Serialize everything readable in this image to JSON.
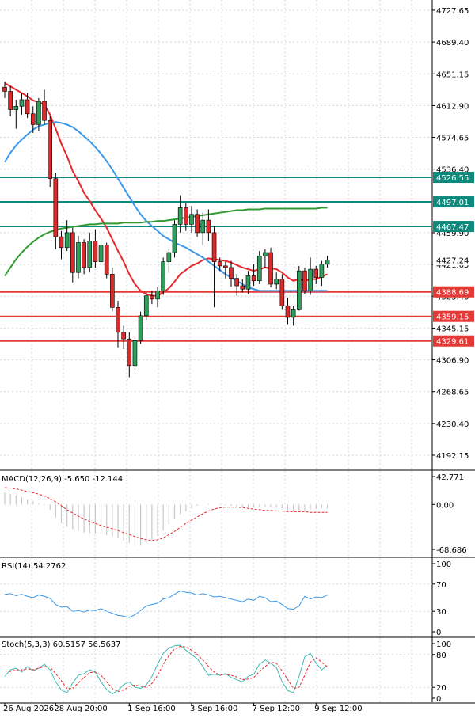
{
  "colors": {
    "bull": "#2e9e5b",
    "bear": "#d92b2b",
    "ema_fast": "#e8262c",
    "sma_mid": "#3a97e8",
    "sma_slow": "#2f9a2f",
    "resistance": "#0e8a7d",
    "support": "#e53935",
    "grid": "#cfd8dc",
    "macd_hist": "#c8c8c8",
    "macd_signal": "#e8262c",
    "rsi": "#3a97e8",
    "stoch_main": "#3fb8b0",
    "stoch_signal": "#e8262c"
  },
  "price_axis": {
    "ticks": [
      "4727.65",
      "4689.40",
      "4651.15",
      "4612.90",
      "4574.65",
      "4536.40",
      "4459.90",
      "4421.65",
      "4383.40",
      "4345.15",
      "4306.90",
      "4268.65",
      "4230.40",
      "4192.15"
    ]
  },
  "levels": [
    {
      "label": "4526.55",
      "value": 4526.55,
      "kind": "resistance"
    },
    {
      "label": "4497.01",
      "value": 4497.01,
      "kind": "resistance"
    },
    {
      "label": "4467.47",
      "value": 4467.47,
      "kind": "resistance"
    },
    {
      "label": "4388.69",
      "value": 4388.69,
      "kind": "support"
    },
    {
      "label": "4359.15",
      "value": 4359.15,
      "kind": "support"
    },
    {
      "label": "4329.61",
      "value": 4329.61,
      "kind": "support"
    }
  ],
  "current_price": {
    "label": "4427.24",
    "value": 4427.24
  },
  "x_axis": {
    "labels": [
      "26 Aug 2026",
      "28 Aug 20:00",
      "1 Sep 16:00",
      "3 Sep 16:00",
      "7 Sep 12:00",
      "9 Sep 12:00"
    ]
  },
  "macd": {
    "title": "MACD(12,26,9) -5.650 -12.144",
    "ticks": [
      "42.771",
      "0.00",
      "-68.686"
    ]
  },
  "rsi": {
    "title": "RSI(14) 54.2762",
    "ticks": [
      "100",
      "70",
      "30",
      "0"
    ]
  },
  "stoch": {
    "title": "Stoch(5,3,3) 60.5157 56.5637",
    "ticks": [
      "100",
      "80",
      "20",
      "0"
    ]
  },
  "chart_data": [
    {
      "type": "candlestick",
      "title": "",
      "ylim": [
        4175,
        4740
      ],
      "ohlc": [
        [
          4635,
          4642,
          4622,
          4630
        ],
        [
          4630,
          4636,
          4600,
          4608
        ],
        [
          4608,
          4620,
          4585,
          4612
        ],
        [
          4612,
          4628,
          4602,
          4620
        ],
        [
          4620,
          4628,
          4598,
          4603
        ],
        [
          4603,
          4612,
          4580,
          4590
        ],
        [
          4590,
          4622,
          4582,
          4618
        ],
        [
          4618,
          4632,
          4590,
          4595
        ],
        [
          4595,
          4600,
          4515,
          4525
        ],
        [
          4525,
          4532,
          4440,
          4455
        ],
        [
          4455,
          4462,
          4428,
          4442
        ],
        [
          4442,
          4475,
          4438,
          4460
        ],
        [
          4460,
          4466,
          4400,
          4412
        ],
        [
          4412,
          4456,
          4405,
          4448
        ],
        [
          4448,
          4452,
          4410,
          4418
        ],
        [
          4418,
          4460,
          4412,
          4450
        ],
        [
          4450,
          4464,
          4418,
          4425
        ],
        [
          4425,
          4455,
          4420,
          4445
        ],
        [
          4445,
          4448,
          4405,
          4410
        ],
        [
          4410,
          4418,
          4365,
          4370
        ],
        [
          4370,
          4378,
          4322,
          4340
        ],
        [
          4340,
          4348,
          4320,
          4332
        ],
        [
          4332,
          4340,
          4286,
          4300
        ],
        [
          4300,
          4335,
          4295,
          4330
        ],
        [
          4330,
          4365,
          4326,
          4360
        ],
        [
          4360,
          4388,
          4355,
          4384
        ],
        [
          4384,
          4390,
          4374,
          4380
        ],
        [
          4380,
          4395,
          4370,
          4390
        ],
        [
          4390,
          4430,
          4385,
          4425
        ],
        [
          4425,
          4440,
          4412,
          4436
        ],
        [
          4436,
          4475,
          4430,
          4470
        ],
        [
          4470,
          4505,
          4460,
          4490
        ],
        [
          4490,
          4496,
          4462,
          4470
        ],
        [
          4470,
          4492,
          4460,
          4482
        ],
        [
          4482,
          4488,
          4455,
          4460
        ],
        [
          4460,
          4484,
          4445,
          4475
        ],
        [
          4475,
          4488,
          4450,
          4460
        ],
        [
          4460,
          4468,
          4370,
          4425
        ],
        [
          4425,
          4430,
          4414,
          4420
        ],
        [
          4420,
          4425,
          4405,
          4418
        ],
        [
          4418,
          4426,
          4395,
          4405
        ],
        [
          4405,
          4410,
          4384,
          4396
        ],
        [
          4396,
          4404,
          4388,
          4392
        ],
        [
          4392,
          4414,
          4386,
          4408
        ],
        [
          4408,
          4422,
          4396,
          4402
        ],
        [
          4402,
          4438,
          4398,
          4432
        ],
        [
          4432,
          4440,
          4418,
          4436
        ],
        [
          4436,
          4442,
          4394,
          4398
        ],
        [
          4398,
          4412,
          4392,
          4404
        ],
        [
          4404,
          4410,
          4368,
          4372
        ],
        [
          4372,
          4382,
          4350,
          4358
        ],
        [
          4358,
          4372,
          4348,
          4368
        ],
        [
          4368,
          4420,
          4366,
          4414
        ],
        [
          4414,
          4418,
          4386,
          4390
        ],
        [
          4390,
          4430,
          4385,
          4416
        ],
        [
          4416,
          4420,
          4398,
          4406
        ],
        [
          4406,
          4426,
          4396,
          4422
        ],
        [
          4422,
          4432,
          4418,
          4427
        ]
      ],
      "series": [
        {
          "name": "ema_fast",
          "values": [
            4640,
            4636,
            4632,
            4628,
            4624,
            4619,
            4617,
            4614,
            4602,
            4585,
            4567,
            4552,
            4534,
            4522,
            4508,
            4498,
            4487,
            4477,
            4466,
            4452,
            4438,
            4425,
            4410,
            4398,
            4390,
            4386,
            4384,
            4384,
            4388,
            4393,
            4401,
            4410,
            4415,
            4420,
            4423,
            4427,
            4429,
            4428,
            4427,
            4426,
            4424,
            4421,
            4418,
            4416,
            4414,
            4416,
            4418,
            4417,
            4416,
            4412,
            4406,
            4402,
            4404,
            4402,
            4404,
            4404,
            4407,
            4410
          ]
        },
        {
          "name": "sma_mid",
          "values": [
            4545,
            4556,
            4565,
            4572,
            4578,
            4584,
            4588,
            4590,
            4592,
            4593,
            4592,
            4590,
            4587,
            4582,
            4576,
            4570,
            4563,
            4555,
            4546,
            4536,
            4525,
            4514,
            4503,
            4492,
            4482,
            4474,
            4468,
            4462,
            4456,
            4452,
            4448,
            4445,
            4442,
            4438,
            4434,
            4430,
            4425,
            4420,
            4415,
            4410,
            4406,
            4402,
            4398,
            4394,
            4392,
            4390,
            4390,
            4390,
            4390,
            4390,
            4390,
            4390,
            4390,
            4390,
            4390,
            4390,
            4390,
            4390
          ]
        },
        {
          "name": "sma_slow",
          "values": [
            4408,
            4418,
            4428,
            4436,
            4443,
            4449,
            4454,
            4458,
            4461,
            4463,
            4465,
            4466,
            4467,
            4468,
            4469,
            4470,
            4470,
            4471,
            4471,
            4471,
            4471,
            4472,
            4472,
            4472,
            4472,
            4473,
            4473,
            4474,
            4474,
            4475,
            4476,
            4477,
            4478,
            4479,
            4480,
            4481,
            4482,
            4483,
            4484,
            4485,
            4486,
            4487,
            4487,
            4488,
            4488,
            4488,
            4489,
            4489,
            4489,
            4489,
            4489,
            4489,
            4489,
            4489,
            4489,
            4489,
            4490,
            4490
          ]
        }
      ]
    },
    {
      "type": "bar",
      "title": "MACD(12,26,9) -5.650 -12.144",
      "ylim": [
        -68.686,
        42.771
      ],
      "values": [
        18,
        16,
        14,
        11,
        8,
        5,
        2,
        -1,
        -8,
        -20,
        -29,
        -34,
        -38,
        -41,
        -43,
        -44,
        -44,
        -45,
        -47,
        -49,
        -52,
        -55,
        -59,
        -62,
        -62,
        -59,
        -54,
        -48,
        -40,
        -31,
        -23,
        -15,
        -10,
        -6,
        -2,
        0,
        1,
        0,
        -1,
        -1,
        -2,
        -3,
        -4,
        -4,
        -4,
        -3,
        -3,
        -4,
        -4,
        -6,
        -9,
        -11,
        -10,
        -10,
        -8,
        -7,
        -6,
        -6
      ],
      "series": [
        {
          "name": "signal",
          "values": [
            26,
            25,
            24,
            22,
            20,
            18,
            16,
            13,
            9,
            4,
            -2,
            -8,
            -13,
            -18,
            -22,
            -26,
            -29,
            -32,
            -35,
            -37,
            -40,
            -43,
            -46,
            -49,
            -52,
            -54,
            -55,
            -54,
            -51,
            -46,
            -41,
            -35,
            -29,
            -24,
            -19,
            -14,
            -10,
            -7,
            -5,
            -4,
            -4,
            -4,
            -5,
            -6,
            -7,
            -8,
            -9,
            -9,
            -10,
            -10,
            -11,
            -11,
            -11,
            -11,
            -12,
            -12,
            -12,
            -12
          ]
        }
      ]
    },
    {
      "type": "line",
      "title": "RSI(14) 54.2762",
      "ylim": [
        0,
        100
      ],
      "series": [
        {
          "name": "RSI",
          "values": [
            55,
            56,
            53,
            55,
            52,
            50,
            54,
            52,
            49,
            40,
            36,
            37,
            30,
            31,
            29,
            32,
            31,
            34,
            30,
            27,
            24,
            23,
            21,
            25,
            31,
            38,
            40,
            42,
            48,
            50,
            55,
            60,
            58,
            57,
            54,
            56,
            54,
            51,
            52,
            50,
            48,
            46,
            44,
            48,
            46,
            52,
            50,
            44,
            45,
            40,
            34,
            33,
            38,
            52,
            48,
            51,
            50,
            54
          ]
        }
      ]
    },
    {
      "type": "line",
      "title": "Stoch(5,3,3) 60.5157 56.5637",
      "ylim": [
        0,
        100
      ],
      "series": [
        {
          "name": "main",
          "values": [
            40,
            52,
            55,
            48,
            58,
            50,
            55,
            62,
            52,
            30,
            15,
            10,
            28,
            42,
            45,
            52,
            48,
            30,
            16,
            8,
            14,
            25,
            30,
            20,
            18,
            24,
            40,
            62,
            82,
            92,
            96,
            97,
            88,
            80,
            72,
            58,
            42,
            44,
            42,
            45,
            38,
            34,
            30,
            40,
            44,
            62,
            70,
            64,
            56,
            30,
            14,
            10,
            40,
            76,
            82,
            64,
            52,
            60
          ]
        },
        {
          "name": "signal",
          "values": [
            50,
            49,
            52,
            52,
            54,
            52,
            55,
            58,
            57,
            45,
            32,
            18,
            18,
            28,
            38,
            47,
            48,
            42,
            30,
            18,
            12,
            15,
            22,
            24,
            22,
            20,
            27,
            42,
            62,
            78,
            90,
            95,
            94,
            88,
            80,
            70,
            58,
            48,
            42,
            44,
            42,
            39,
            34,
            35,
            38,
            49,
            58,
            66,
            64,
            50,
            34,
            18,
            20,
            42,
            66,
            74,
            66,
            57
          ]
        }
      ]
    }
  ]
}
